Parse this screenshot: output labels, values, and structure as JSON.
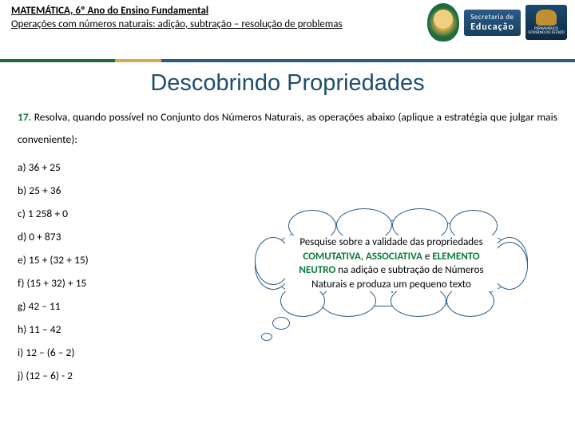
{
  "header": {
    "course_title": "MATEMÁTICA, 6º Ano do Ensino Fundamental",
    "course_subtitle": "Operações com números naturais: adição, subtração – resolução de problemas",
    "seal_logo": {
      "line1": "Secretaria de",
      "line2": "Educação"
    },
    "state_logo": {
      "line1": "PERNAMBUCO",
      "line2": "GOVERNO DO ESTADO"
    }
  },
  "divider_colors": {
    "green": "#1e6b3e",
    "gold": "#d4a94a",
    "blue": "#2a5c8a"
  },
  "title": "Descobrindo Propriedades",
  "question": {
    "number": "17.",
    "intro": "Resolva, quando possível no Conjunto dos Números Naturais, as operações abaixo (aplique a estratégia que julgar mais conveniente):"
  },
  "items": {
    "a": "a) 36 + 25",
    "b": "b) 25 + 36",
    "c": "c) 1 258 + 0",
    "d": "d) 0 + 873",
    "e": "e) 15 + (32 + 15)",
    "f": "f) (15 + 32) + 15",
    "g": "g) 42 – 11",
    "h": "h) 11 – 42",
    "i": "i) 12 – (6 – 2)",
    "j": "j) (12 – 6) - 2"
  },
  "callout": {
    "pre": "Pesquise sobre a validade das propriedades ",
    "kw1": "COMUTATIVA",
    "mid1": ", ",
    "kw2": "ASSOCIATIVA",
    "mid2": " e ",
    "kw3": "ELEMENTO NEUTRO",
    "post": " na adição e subtração de Números Naturais e produza um pequeno texto"
  },
  "colors": {
    "title_color": "#1f4e6b",
    "question_number_color": "#0a7a3a",
    "keyword_color": "#0a7a3a",
    "cloud_border": "#2a5c8a",
    "background": "#ffffff"
  },
  "typography": {
    "title_fontsize": 29,
    "body_fontsize": 13.5,
    "header_fontsize": 13,
    "callout_fontsize": 13
  }
}
